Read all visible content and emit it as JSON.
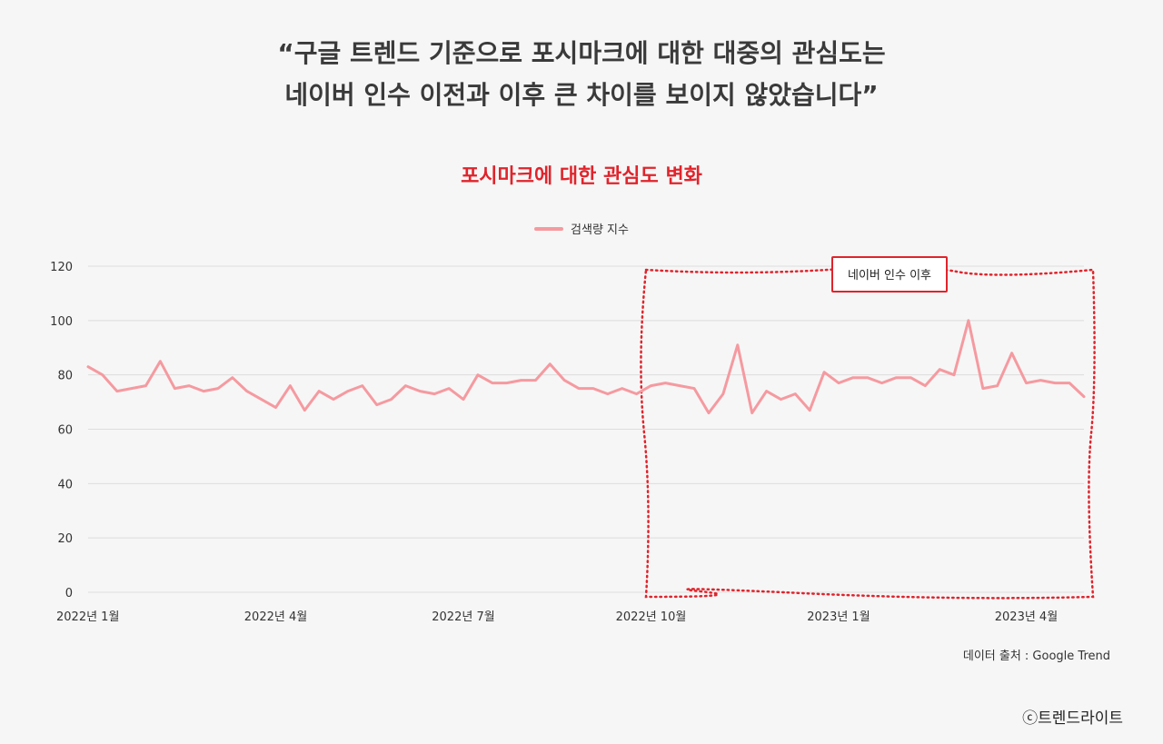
{
  "headline": {
    "line1": "“구글 트렌드 기준으로 포시마크에 대한 대중의 관심도는",
    "line2": "네이버 인수 이전과 이후 큰 차이를 보이지 않았습니다”"
  },
  "source": "데이터 출처 : Google Trend",
  "copyright": "ⓒ트렌드라이트",
  "colors": {
    "line": "#f59aa0",
    "accent": "#e0242c",
    "grid": "#dddddd"
  },
  "chart_data": {
    "type": "line",
    "title": "포시마크에 대한 관심도 변화",
    "legend_position": "top-center",
    "grid": true,
    "ylim": [
      0,
      120
    ],
    "yticks": [
      0,
      20,
      40,
      60,
      80,
      100,
      120
    ],
    "xtick_labels": [
      "2022년 1월",
      "2022년 4월",
      "2022년 7월",
      "2022년 10월",
      "2023년 1월",
      "2023년 4월"
    ],
    "series": [
      {
        "name": "검색량 지수",
        "values": [
          83,
          80,
          74,
          75,
          76,
          85,
          75,
          76,
          74,
          75,
          79,
          74,
          71,
          68,
          76,
          67,
          74,
          71,
          74,
          76,
          69,
          71,
          76,
          74,
          73,
          75,
          71,
          80,
          77,
          77,
          78,
          78,
          84,
          78,
          75,
          75,
          73,
          75,
          73,
          76,
          77,
          76,
          75,
          66,
          73,
          91,
          66,
          74,
          71,
          73,
          67,
          81,
          77,
          79,
          79,
          77,
          79,
          79,
          76,
          82,
          80,
          100,
          75,
          76,
          88,
          77,
          78,
          77,
          77,
          72
        ]
      }
    ],
    "annotation": {
      "label": "네이버 인수 이후",
      "start_index": 39,
      "end_index": 69
    }
  }
}
